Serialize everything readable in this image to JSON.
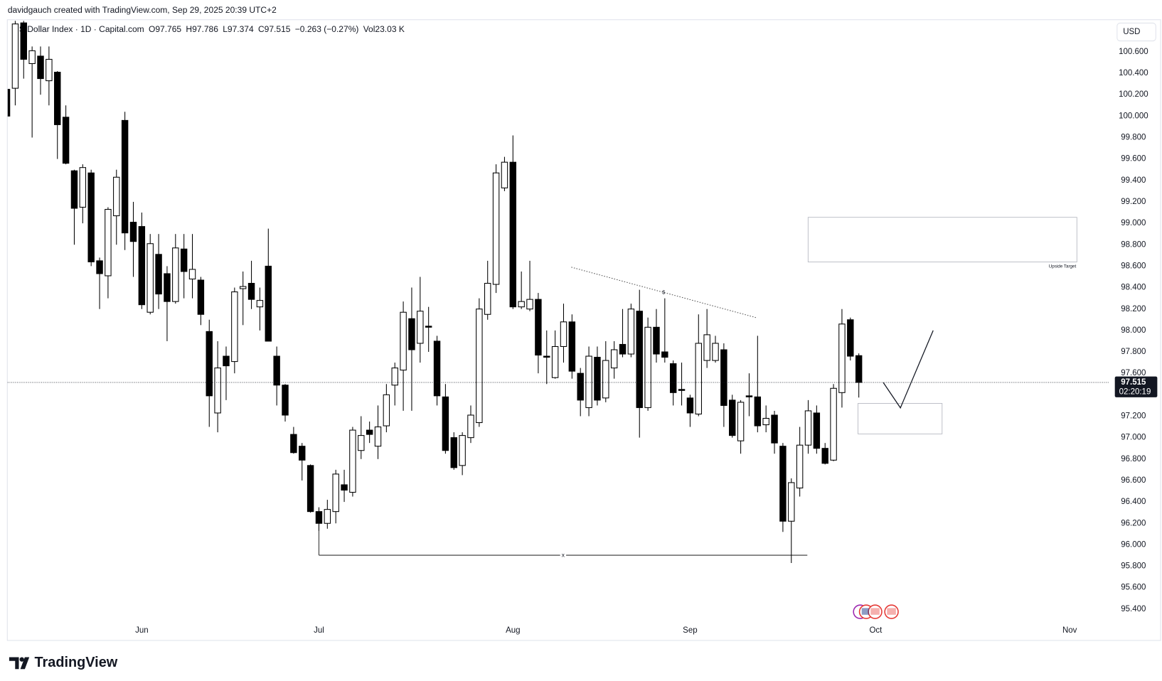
{
  "header": {
    "creator_line": "davidgauch created with TradingView.com, Sep 29, 2025 20:39 UTC+2",
    "ohlc": [
      "O97.765",
      "H97.786",
      "L97.374",
      "C97.515"
    ],
    "change": "−0.263 (−0.27%)",
    "volume": "Vol23.03 K",
    "currency": "USD",
    "countdown": "02:20:19"
  },
  "annotations": {
    "upside_target": "Upside Target",
    "dollar_mark": "$",
    "x_mark": "x"
  },
  "footer": {
    "logo": "TradingView"
  },
  "chart_data": {
    "type": "candlestick",
    "title": "US Dollar Index · 1D · Capital.com",
    "up_color": "#ffffff",
    "down_color": "#000000",
    "edge_color": "#000000",
    "last_price": 97.515,
    "ylim": [
      95.111,
      100.889
    ],
    "yticks": [
      {
        "value": 95.4,
        "label": "95.400"
      },
      {
        "value": 95.6,
        "label": "95.600"
      },
      {
        "value": 95.8,
        "label": "95.800"
      },
      {
        "value": 96.0,
        "label": "96.000"
      },
      {
        "value": 96.2,
        "label": "96.200"
      },
      {
        "value": 96.4,
        "label": "96.400"
      },
      {
        "value": 96.6,
        "label": "96.600"
      },
      {
        "value": 96.8,
        "label": "96.800"
      },
      {
        "value": 97.0,
        "label": "97.000"
      },
      {
        "value": 97.2,
        "label": "97.200"
      },
      {
        "value": 97.4,
        "label": "97.400"
      },
      {
        "value": 97.6,
        "label": "97.600"
      },
      {
        "value": 97.8,
        "label": "97.800"
      },
      {
        "value": 98.0,
        "label": "98.000"
      },
      {
        "value": 98.2,
        "label": "98.200"
      },
      {
        "value": 98.4,
        "label": "98.400"
      },
      {
        "value": 98.6,
        "label": "98.600"
      },
      {
        "value": 98.8,
        "label": "98.800"
      },
      {
        "value": 99.0,
        "label": "99.000"
      },
      {
        "value": 99.2,
        "label": "99.200"
      },
      {
        "value": 99.4,
        "label": "99.400"
      },
      {
        "value": 99.6,
        "label": "99.600"
      },
      {
        "value": 99.8,
        "label": "99.800"
      },
      {
        "value": 100.0,
        "label": "100.000"
      },
      {
        "value": 100.2,
        "label": "100.200"
      },
      {
        "value": 100.4,
        "label": "100.400"
      },
      {
        "value": 100.6,
        "label": "100.600"
      }
    ],
    "grid": false,
    "categories": [
      null,
      null,
      null,
      null,
      null,
      null,
      null,
      null,
      null,
      null,
      null,
      null,
      null,
      null,
      null,
      null,
      "Jun",
      null,
      null,
      null,
      null,
      null,
      null,
      null,
      null,
      null,
      null,
      null,
      null,
      null,
      null,
      null,
      null,
      null,
      null,
      null,
      null,
      "Jul",
      null,
      null,
      null,
      null,
      null,
      null,
      null,
      null,
      null,
      null,
      null,
      null,
      null,
      null,
      null,
      null,
      null,
      null,
      null,
      null,
      null,
      null,
      "Aug",
      null,
      null,
      null,
      null,
      null,
      null,
      null,
      null,
      null,
      null,
      null,
      null,
      null,
      null,
      null,
      null,
      null,
      null,
      null,
      null,
      "Sep",
      null,
      null,
      null,
      null,
      null,
      null,
      null,
      null,
      null,
      null,
      null,
      null,
      null,
      null,
      null,
      null,
      null,
      null,
      null,
      null,
      null,
      "Oct",
      null,
      null,
      null,
      null,
      null,
      null,
      null,
      null,
      null,
      null,
      null,
      null,
      null,
      null,
      null,
      null,
      null,
      null,
      null,
      null,
      null,
      null,
      "Nov",
      null,
      null,
      null,
      null
    ],
    "open": [
      100.25,
      100.26,
      100.87,
      100.49,
      100.56,
      100.33,
      100.41,
      99.99,
      99.49,
      99.15,
      99.47,
      98.65,
      98.51,
      99.07,
      99.96,
      99.01,
      98.97,
      98.17,
      98.71,
      98.53,
      98.27,
      98.76,
      98.48,
      98.47,
      97.99,
      97.23,
      97.76,
      97.71,
      98.39,
      98.44,
      98.22,
      98.6,
      97.76,
      97.49,
      97.03,
      96.92,
      96.74,
      96.31,
      96.2,
      96.31,
      96.56,
      96.49,
      96.88,
      97.07,
      96.92,
      97.11,
      97.49,
      97.63,
      98.11,
      97.88,
      98.04,
      97.9,
      97.38,
      97.0,
      96.74,
      97.0,
      97.14,
      98.15,
      98.43,
      99.33,
      99.57,
      98.22,
      98.2,
      98.29,
      97.76,
      97.56,
      97.85,
      98.08,
      97.6,
      97.28,
      97.75,
      97.37,
      97.65,
      97.87,
      97.78,
      98.18,
      97.28,
      98.03,
      97.8,
      97.69,
      97.45,
      97.37,
      97.22,
      97.72,
      97.72,
      97.82,
      97.35,
      96.97,
      97.39,
      97.38,
      97.12,
      97.21,
      96.92,
      96.22,
      96.53,
      96.93,
      97.23,
      96.9,
      96.79,
      97.42,
      98.1,
      97.765,
      null,
      null,
      null,
      null,
      null,
      null,
      null,
      null,
      null,
      null,
      null,
      null,
      null,
      null,
      null,
      null,
      null,
      null,
      null,
      null,
      null,
      null,
      null,
      null,
      null,
      null,
      null,
      null,
      null
    ],
    "high": [
      100.3,
      100.9,
      100.9,
      100.65,
      100.65,
      100.65,
      100.42,
      100.1,
      99.5,
      99.55,
      99.5,
      98.68,
      99.15,
      99.5,
      100.04,
      99.2,
      99.1,
      98.9,
      98.9,
      98.6,
      98.9,
      98.9,
      98.9,
      98.5,
      98.1,
      97.9,
      97.85,
      98.4,
      98.55,
      98.65,
      98.4,
      98.95,
      97.85,
      97.5,
      97.1,
      96.95,
      96.75,
      96.35,
      96.42,
      96.7,
      96.7,
      97.1,
      97.2,
      97.15,
      97.3,
      97.5,
      97.7,
      98.27,
      98.4,
      98.5,
      98.22,
      97.95,
      97.5,
      97.05,
      97.05,
      97.3,
      98.3,
      98.65,
      99.55,
      99.62,
      99.82,
      98.55,
      98.65,
      98.35,
      98.0,
      98.0,
      98.25,
      98.15,
      97.65,
      97.85,
      97.85,
      97.9,
      97.9,
      98.2,
      98.25,
      98.38,
      98.12,
      98.2,
      98.3,
      97.72,
      97.7,
      97.4,
      98.15,
      98.2,
      97.95,
      97.88,
      97.4,
      97.35,
      97.6,
      97.95,
      97.3,
      97.25,
      96.95,
      96.62,
      97.1,
      97.35,
      97.3,
      96.95,
      97.5,
      98.2,
      98.12,
      97.786,
      null,
      null,
      null,
      null,
      null,
      null,
      null,
      null,
      null,
      null,
      null,
      null,
      null,
      null,
      null,
      null,
      null,
      null,
      null,
      null,
      null,
      null,
      null,
      null,
      null,
      null,
      null,
      null,
      null
    ],
    "low": [
      99.7,
      100.1,
      100.35,
      99.8,
      100.2,
      100.1,
      99.6,
      99.55,
      98.8,
      99.0,
      98.6,
      98.2,
      98.3,
      98.8,
      98.75,
      98.5,
      98.2,
      98.15,
      98.2,
      97.9,
      98.25,
      98.3,
      98.3,
      98.05,
      97.1,
      97.05,
      97.35,
      97.6,
      98.05,
      98.2,
      98.0,
      97.9,
      97.3,
      97.15,
      96.85,
      96.6,
      96.3,
      96.13,
      96.15,
      96.2,
      96.4,
      96.45,
      96.8,
      96.95,
      96.8,
      97.05,
      97.3,
      97.25,
      97.25,
      97.7,
      97.8,
      97.3,
      96.85,
      96.7,
      96.65,
      96.95,
      97.1,
      98.1,
      98.35,
      99.3,
      98.2,
      98.2,
      98.18,
      97.6,
      97.5,
      97.55,
      97.7,
      97.55,
      97.2,
      97.2,
      97.3,
      97.33,
      97.55,
      97.75,
      97.75,
      97.0,
      97.25,
      97.7,
      97.7,
      97.3,
      97.3,
      97.1,
      97.2,
      97.65,
      97.7,
      97.1,
      97.0,
      96.85,
      97.2,
      97.05,
      97.05,
      96.85,
      96.12,
      95.83,
      96.45,
      96.85,
      96.85,
      96.75,
      96.78,
      97.28,
      97.72,
      97.374,
      null,
      null,
      null,
      null,
      null,
      null,
      null,
      null,
      null,
      null,
      null,
      null,
      null,
      null,
      null,
      null,
      null,
      null,
      null,
      null,
      null,
      null,
      null,
      null,
      null,
      null,
      null,
      null,
      null
    ],
    "close": [
      100.0,
      100.86,
      100.53,
      100.61,
      100.35,
      100.53,
      99.92,
      99.56,
      99.14,
      99.52,
      98.64,
      98.53,
      99.13,
      99.43,
      98.91,
      98.83,
      98.24,
      98.81,
      98.34,
      98.27,
      98.77,
      98.55,
      98.57,
      98.15,
      97.39,
      97.65,
      97.67,
      98.36,
      98.41,
      98.29,
      98.28,
      97.9,
      97.49,
      97.21,
      96.86,
      96.79,
      96.31,
      96.2,
      96.33,
      96.66,
      96.51,
      97.07,
      97.02,
      97.03,
      97.1,
      97.4,
      97.65,
      98.17,
      97.82,
      98.18,
      98.03,
      97.39,
      96.88,
      96.72,
      97.02,
      97.21,
      98.2,
      98.44,
      99.47,
      99.57,
      98.22,
      98.27,
      98.29,
      97.77,
      97.75,
      97.85,
      98.08,
      97.62,
      97.35,
      97.76,
      97.35,
      97.72,
      97.82,
      97.78,
      98.2,
      97.28,
      98.03,
      97.78,
      97.75,
      97.42,
      97.44,
      97.23,
      97.88,
      97.96,
      97.88,
      97.3,
      97.02,
      97.33,
      97.38,
      97.11,
      97.18,
      96.95,
      96.22,
      96.58,
      96.93,
      97.25,
      96.9,
      96.76,
      97.46,
      98.06,
      97.76,
      97.515,
      null,
      null,
      null,
      null,
      null,
      null,
      null,
      null,
      null,
      null,
      null,
      null,
      null,
      null,
      null,
      null,
      null,
      null,
      null,
      null,
      null,
      null,
      null,
      null,
      null,
      null,
      null,
      null,
      null
    ]
  }
}
